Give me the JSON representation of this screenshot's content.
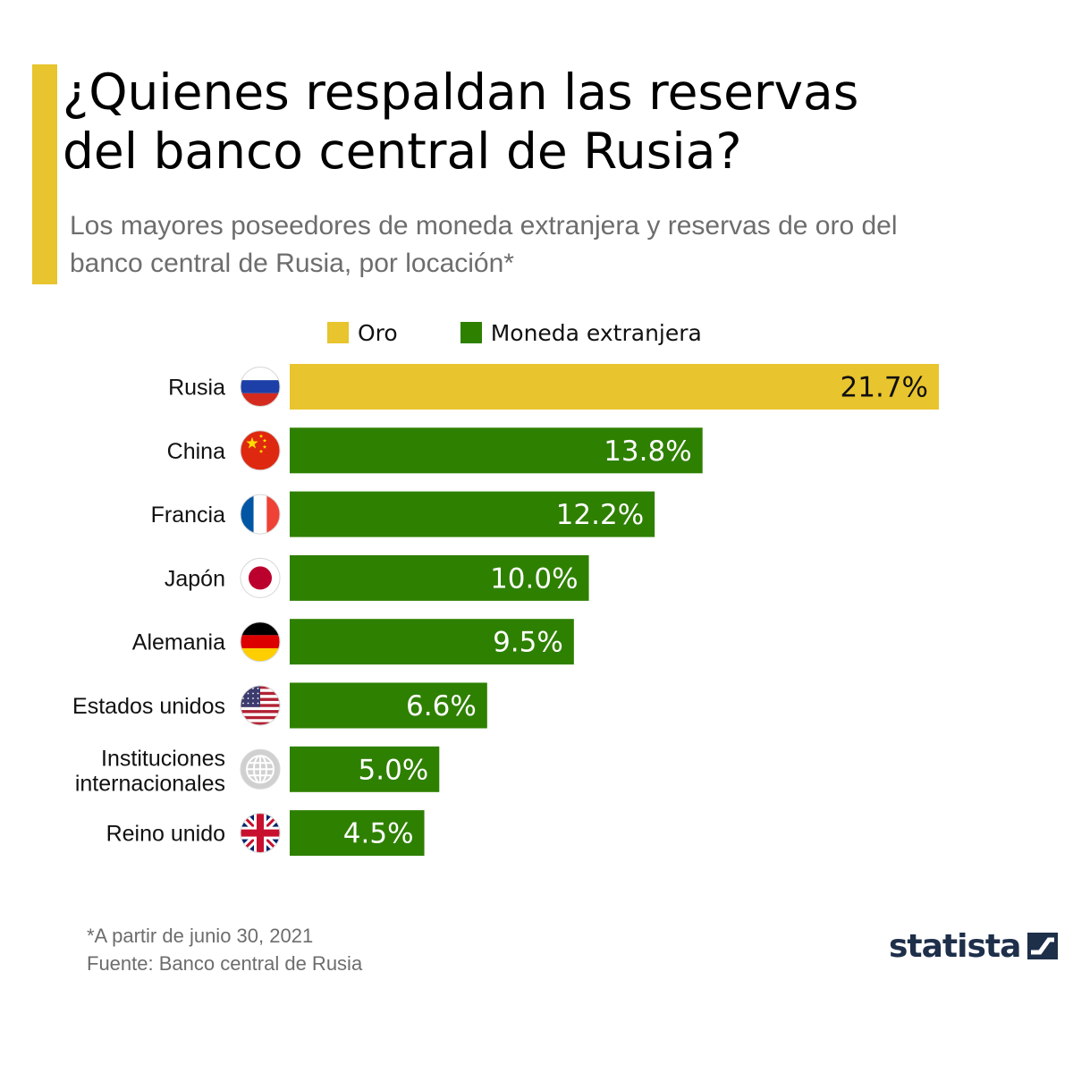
{
  "title_line1": "¿Quienes respaldan las reservas",
  "title_line2": "del banco central de Rusia?",
  "subtitle_line1": "Los mayores poseedores de moneda extranjera y reservas de oro del",
  "subtitle_line2": "banco central de Rusia, por locación*",
  "colors": {
    "gold": "#e8c42e",
    "green": "#2e8000",
    "accent": "#e8c42e"
  },
  "legend": [
    {
      "label": "Oro",
      "color": "#e8c42e"
    },
    {
      "label": "Moneda extranjera",
      "color": "#2e8000"
    }
  ],
  "chart_data": {
    "type": "bar",
    "orientation": "horizontal",
    "categories": [
      "Rusia",
      "China",
      "Francia",
      "Japón",
      "Alemania",
      "Estados unidos",
      "Instituciones internacionales",
      "Reino unido"
    ],
    "category_lines": [
      [
        "Rusia"
      ],
      [
        "China"
      ],
      [
        "Francia"
      ],
      [
        "Japón"
      ],
      [
        "Alemania"
      ],
      [
        "Estados unidos"
      ],
      [
        "Instituciones",
        "internacionales"
      ],
      [
        "Reino unido"
      ]
    ],
    "values": [
      21.7,
      13.8,
      12.2,
      10.0,
      9.5,
      6.6,
      5.0,
      4.5
    ],
    "value_labels": [
      "21.7%",
      "13.8%",
      "12.2%",
      "10.0%",
      "9.5%",
      "6.6%",
      "5.0%",
      "4.5%"
    ],
    "bar_types": [
      "Oro",
      "Moneda extranjera",
      "Moneda extranjera",
      "Moneda extranjera",
      "Moneda extranjera",
      "Moneda extranjera",
      "Moneda extranjera",
      "Moneda extranjera"
    ],
    "flag_icons": [
      "russia-flag-icon",
      "china-flag-icon",
      "france-flag-icon",
      "japan-flag-icon",
      "germany-flag-icon",
      "usa-flag-icon",
      "globe-icon",
      "uk-flag-icon"
    ],
    "xlim": [
      0,
      21.7
    ],
    "grid": false,
    "legend_position": "top"
  },
  "footer": {
    "note": "*A partir de junio 30, 2021",
    "source": "Fuente: Banco central de Rusia"
  },
  "logo": {
    "text": "statista"
  }
}
